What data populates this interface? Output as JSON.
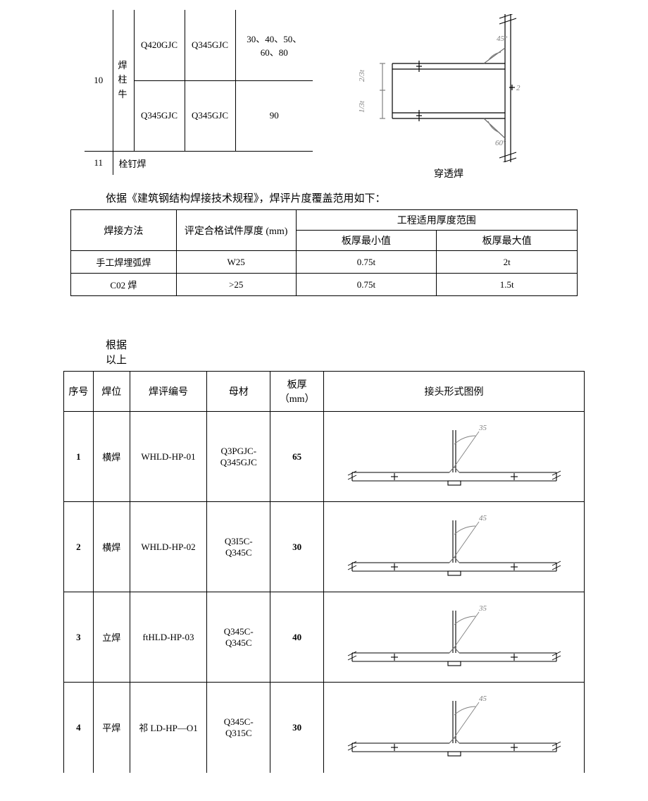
{
  "colors": {
    "text": "#000000",
    "line": "#000000",
    "line_gray": "#6b6b6b",
    "bg": "#ffffff",
    "dim_gray": "#808080"
  },
  "top_table": {
    "index": "10",
    "vertical_label": "焊柱牛",
    "row11_label": "11",
    "row11_text": "栓钉焊",
    "rows": [
      {
        "mat1": "Q420GJC",
        "mat2": "Q345GJC",
        "thickness": "30、40、50、60、80"
      },
      {
        "mat1": "Q345GJC",
        "mat2": "Q345GJC",
        "thickness": "90"
      }
    ]
  },
  "top_diagram": {
    "caption": "穿透焊",
    "angle_upper": "45°",
    "angle_lower": "60°",
    "dim_upper": "2/3t",
    "dim_lower": "1/3t",
    "dim_r": "2"
  },
  "body_text": "依据《建筑钢结构焊接技术规程》，焊评片度覆盖范用如下：",
  "range_table": {
    "head_method": "焊接方法",
    "head_qualified": "评定合格试件厚度 (mm)",
    "head_range": "工程适用厚度范围",
    "head_min": "板厚最小值",
    "head_max": "板厚最大值",
    "method_l1": "手工焊埋弧焊",
    "method_l2": "C02 焊",
    "rows": [
      {
        "qual": "W25",
        "min": "0.75t",
        "max": "2t"
      },
      {
        "qual": ">25",
        "min": "0.75t",
        "max": "1.5t"
      }
    ]
  },
  "note_l1": "根据",
  "note_l2": "以上",
  "joint_table": {
    "head_no": "序号",
    "head_pos": "焊位",
    "head_id": "焊评编号",
    "head_mat": "母材",
    "head_thk": "板厚（mm）",
    "head_dia": "接头形式图例",
    "rows": [
      {
        "no": "1",
        "pos": "横焊",
        "id": "WHLD-HP-01",
        "mat_l1": "Q3PGJC-",
        "mat_l2": "Q345GJC",
        "thk": "65",
        "angle": "35"
      },
      {
        "no": "2",
        "pos": "横焊",
        "id": "WHLD-HP-02",
        "mat_l1": "Q3I5C-",
        "mat_l2": "Q345C",
        "thk": "30",
        "angle": "45"
      },
      {
        "no": "3",
        "pos": "立焊",
        "id": "ftHLD-HP-03",
        "mat_l1": "Q345C-",
        "mat_l2": "Q345C",
        "thk": "40",
        "angle": "35"
      },
      {
        "no": "4",
        "pos": "平焊",
        "id": "祁 LD-HP—O1",
        "mat_l1": "Q345C-",
        "mat_l2": "Q315C",
        "thk": "30",
        "angle": "45"
      }
    ]
  }
}
